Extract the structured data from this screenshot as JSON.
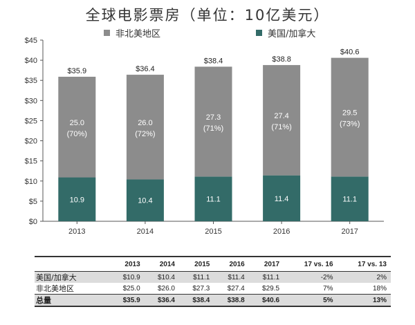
{
  "chart_data": {
    "type": "bar",
    "stacked": true,
    "title": "全球电影票房（单位：10亿美元）",
    "categories": [
      "2013",
      "2014",
      "2015",
      "2016",
      "2017"
    ],
    "series": [
      {
        "name": "美国/加拿大",
        "values": [
          10.9,
          10.4,
          11.1,
          11.4,
          11.1
        ],
        "color": "#336b68",
        "labels": [
          "10.9",
          "10.4",
          "11.1",
          "11.4",
          "11.1"
        ]
      },
      {
        "name": "非北美地区",
        "values": [
          25.0,
          26.0,
          27.3,
          27.4,
          29.5
        ],
        "color": "#8c8c8c",
        "labels": [
          "25.0",
          "26.0",
          "27.3",
          "27.4",
          "29.5"
        ],
        "share_labels": [
          "(70%)",
          "(72%)",
          "(71%)",
          "(71%)",
          "(73%)"
        ]
      }
    ],
    "totals": [
      35.9,
      36.4,
      38.4,
      38.8,
      40.6
    ],
    "total_labels": [
      "$35.9",
      "$36.4",
      "$38.4",
      "$38.8",
      "$40.6"
    ],
    "ylim": [
      0,
      45
    ],
    "yticks": [
      "$0",
      "$5",
      "$10",
      "$15",
      "$20",
      "$25",
      "$30",
      "$35",
      "$40",
      "$45"
    ],
    "grid": false,
    "legend": "top"
  },
  "table": {
    "columns": [
      "",
      "2013",
      "2014",
      "2015",
      "2016",
      "2017",
      "17 vs. 16",
      "17 vs. 13"
    ],
    "rows": [
      {
        "label": "美国/加拿大",
        "cells": [
          "$10.9",
          "$10.4",
          "$11.1",
          "$11.4",
          "$11.1",
          "-2%",
          "2%"
        ]
      },
      {
        "label": "非北美地区",
        "cells": [
          "$25.0",
          "$26.0",
          "$27.3",
          "$27.4",
          "$29.5",
          "7%",
          "18%"
        ]
      },
      {
        "label": "总量",
        "cells": [
          "$35.9",
          "$36.4",
          "$38.4",
          "$38.8",
          "$40.6",
          "5%",
          "13%"
        ]
      }
    ]
  }
}
